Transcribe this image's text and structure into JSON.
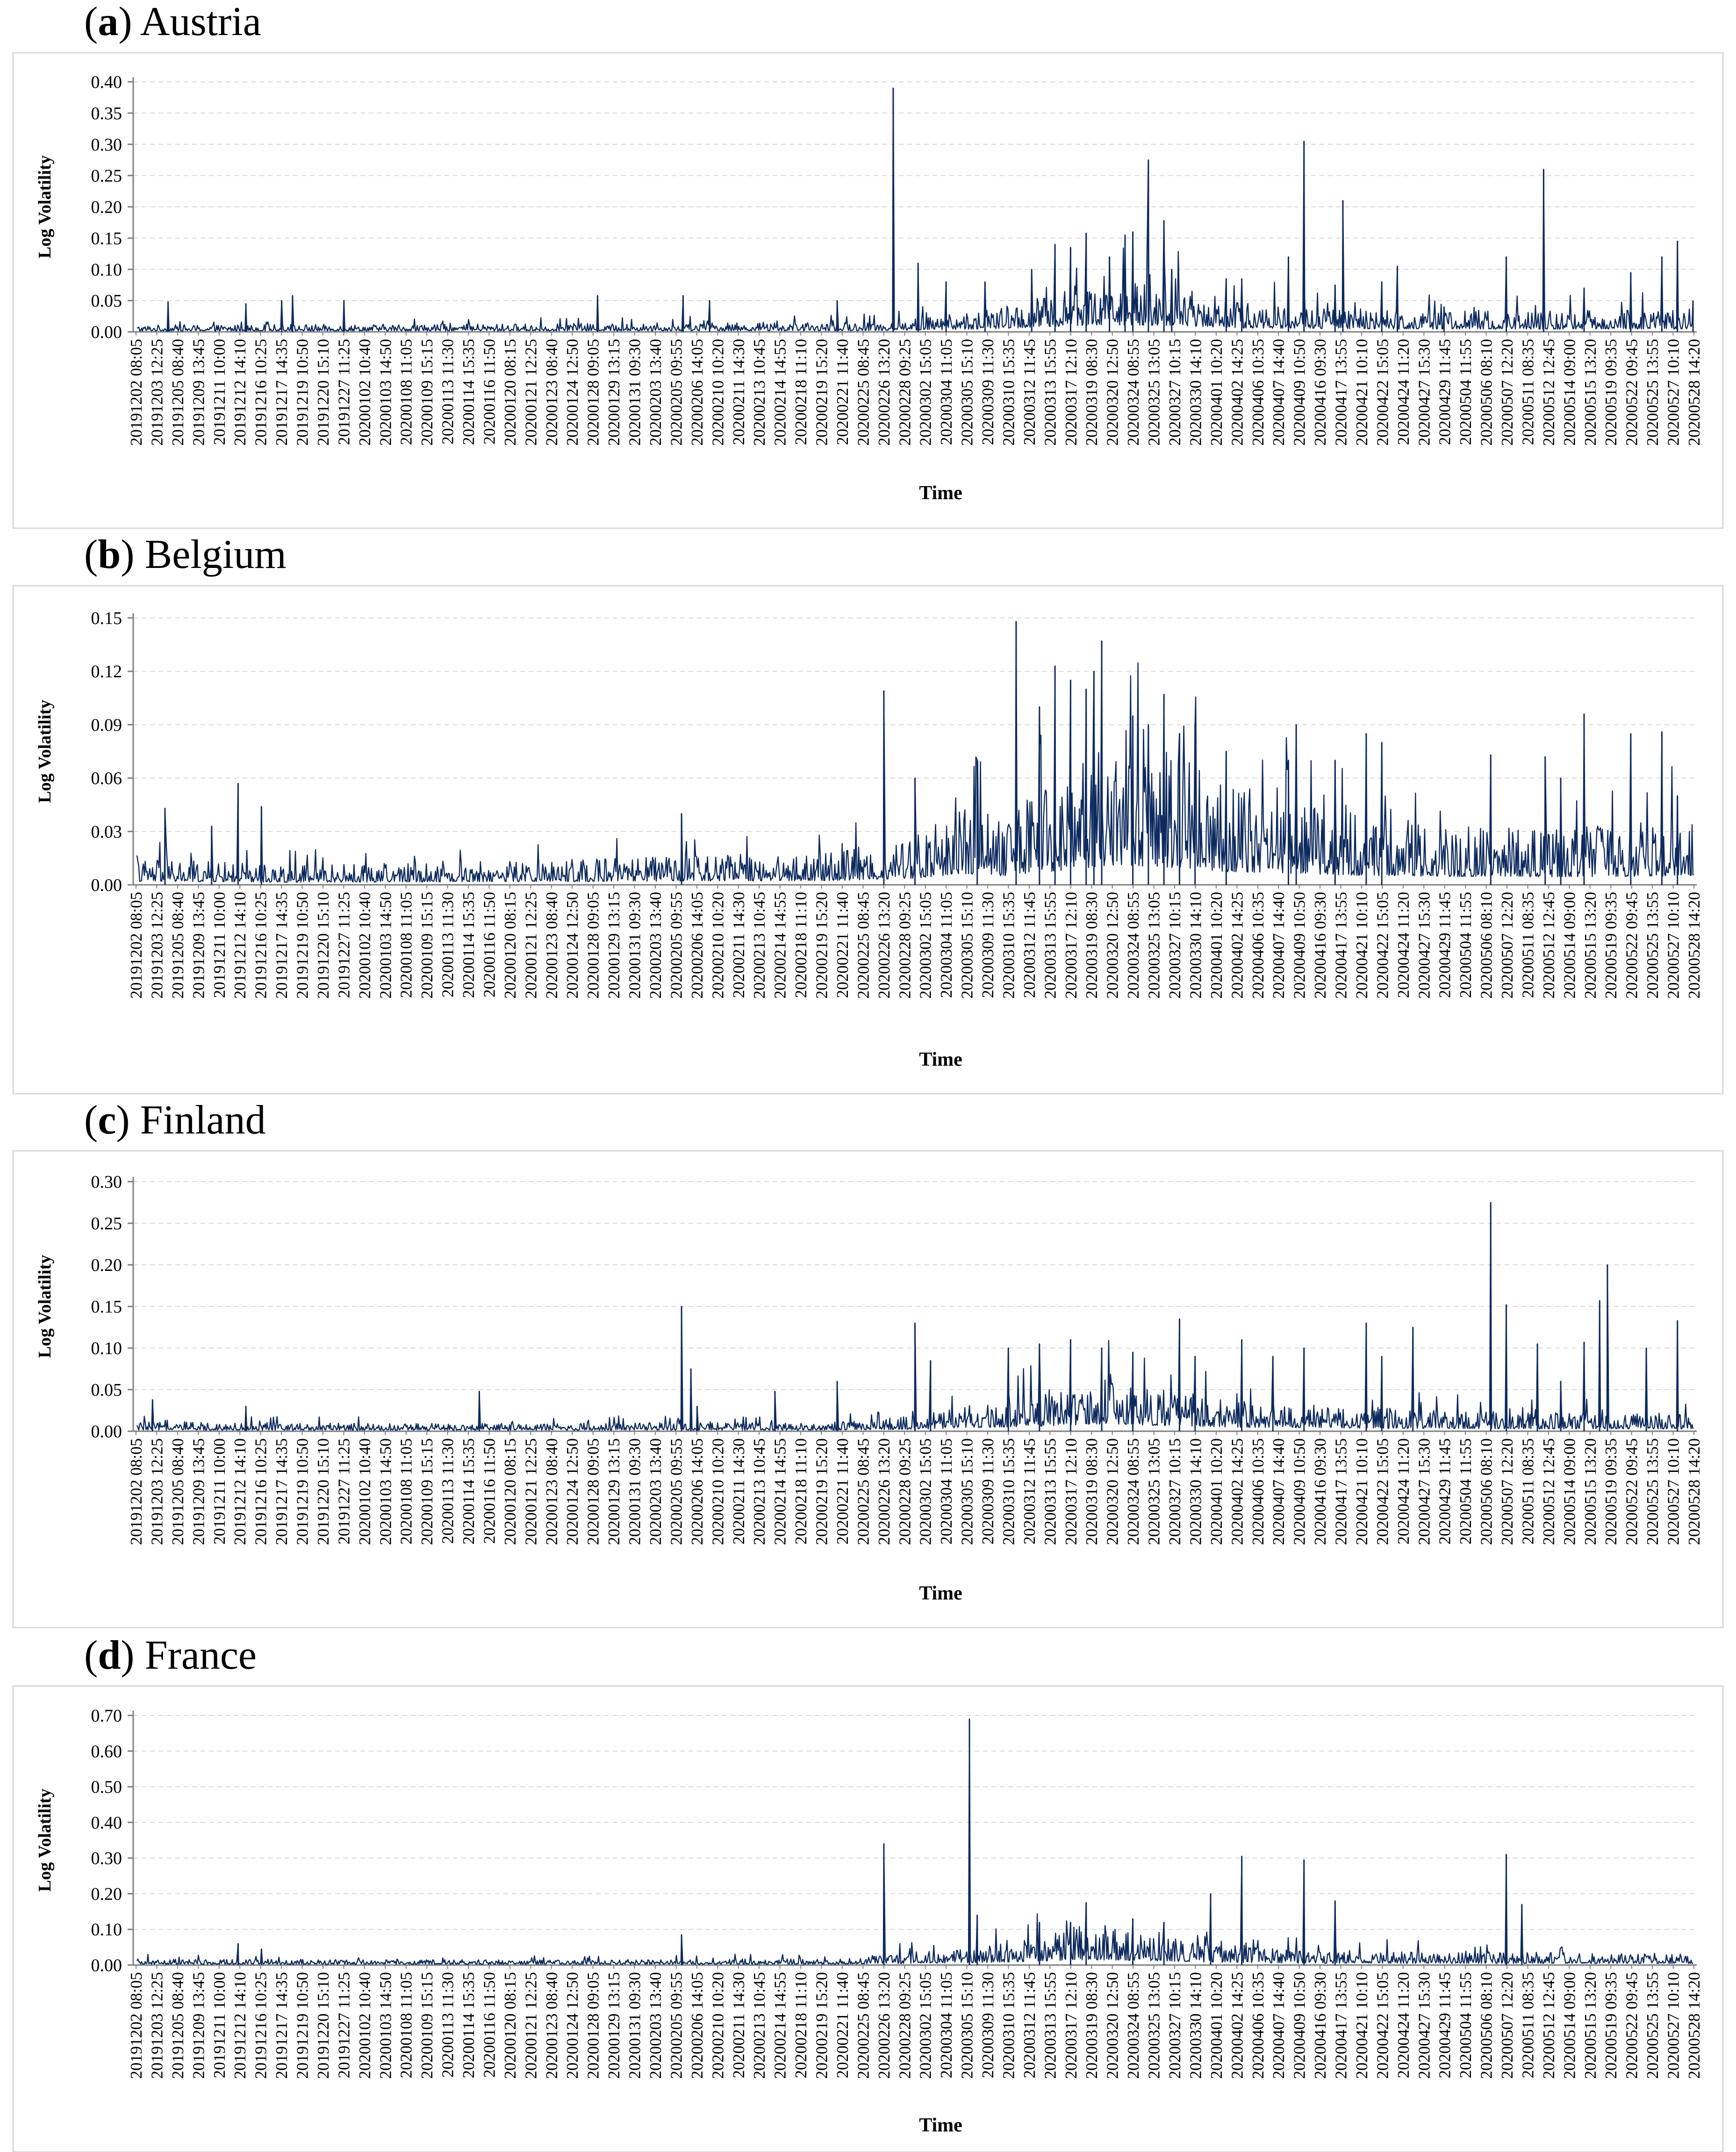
{
  "figure": {
    "panel_count": 4
  },
  "colors": {
    "series": "#0d2a5e",
    "axis": "#7f7f7f",
    "grid": "#d9d9d9",
    "frame": "#d9d9d9",
    "text": "#000000"
  },
  "chart_data": [
    {
      "type": "line",
      "panel_letter": "a",
      "country": "Austria",
      "xlabel": "Time",
      "ylabel": "Log Volatility",
      "ylim": [
        0,
        0.4
      ],
      "yticks": [
        "0.00",
        "0.05",
        "0.10",
        "0.15",
        "0.20",
        "0.25",
        "0.30",
        "0.35",
        "0.40"
      ],
      "xticks": [
        "20191202 08:05",
        "20191203 12:25",
        "20191205 08:40",
        "20191209 13:45",
        "20191211 10:00",
        "20191212 14:10",
        "20191216 10:25",
        "20191217 14:35",
        "20191219 10:50",
        "20191220 15:10",
        "20191227 11:25",
        "20200102 10:40",
        "20200103 14:50",
        "20200108 11:05",
        "20200109 15:15",
        "20200113 11:30",
        "20200114 15:35",
        "20200116 11:50",
        "20200120 08:15",
        "20200121 12:25",
        "20200123 08:40",
        "20200124 12:50",
        "20200128 09:05",
        "20200129 13:15",
        "20200131 09:30",
        "20200203 13:40",
        "20200205 09:55",
        "20200206 14:05",
        "20200210 10:20",
        "20200211 14:30",
        "20200213 10:45",
        "20200214 14:55",
        "20200218 11:10",
        "20200219 15:20",
        "20200221 11:40",
        "20200225 08:45",
        "20200226 13:20",
        "20200228 09:25",
        "20200302 15:05",
        "20200304 11:05",
        "20200305 15:10",
        "20200309 11:30",
        "20200310 15:35",
        "20200312 11:45",
        "20200313 15:55",
        "20200317 12:10",
        "20200319 08:30",
        "20200320 12:50",
        "20200324 08:55",
        "20200325 13:05",
        "20200327 10:15",
        "20200330 14:10",
        "20200401 10:20",
        "20200402 14:25",
        "20200406 10:35",
        "20200407 14:40",
        "20200409 10:50",
        "20200416 09:30",
        "20200417 13:55",
        "20200421 10:10",
        "20200422 15:05",
        "20200424 11:20",
        "20200427 15:30",
        "20200429 11:45",
        "20200504 11:55",
        "20200506 08:10",
        "20200507 12:20",
        "20200511 08:35",
        "20200512 12:45",
        "20200514 09:00",
        "20200515 13:20",
        "20200519 09:35",
        "20200522 09:45",
        "20200525 13:55",
        "20200527 10:10",
        "20200528 14:20"
      ],
      "profile": {
        "baseline": 0.006,
        "segments": [
          [
            0,
            0.006
          ],
          [
            0.46,
            0.008
          ],
          [
            0.5,
            0.012
          ],
          [
            0.55,
            0.02
          ],
          [
            0.58,
            0.03
          ],
          [
            0.6,
            0.04
          ],
          [
            0.63,
            0.045
          ],
          [
            0.67,
            0.04
          ],
          [
            0.71,
            0.025
          ],
          [
            0.78,
            0.02
          ],
          [
            0.9,
            0.018
          ],
          [
            1.0,
            0.02
          ]
        ]
      },
      "spikes": [
        [
          0.02,
          0.048
        ],
        [
          0.07,
          0.045
        ],
        [
          0.093,
          0.05
        ],
        [
          0.1,
          0.058
        ],
        [
          0.133,
          0.05
        ],
        [
          0.296,
          0.058
        ],
        [
          0.351,
          0.058
        ],
        [
          0.368,
          0.05
        ],
        [
          0.45,
          0.05
        ],
        [
          0.486,
          0.39
        ],
        [
          0.502,
          0.11
        ],
        [
          0.52,
          0.08
        ],
        [
          0.545,
          0.08
        ],
        [
          0.575,
          0.1
        ],
        [
          0.59,
          0.14
        ],
        [
          0.6,
          0.135
        ],
        [
          0.61,
          0.158
        ],
        [
          0.625,
          0.12
        ],
        [
          0.635,
          0.155
        ],
        [
          0.64,
          0.16
        ],
        [
          0.65,
          0.275
        ],
        [
          0.66,
          0.178
        ],
        [
          0.665,
          0.1
        ],
        [
          0.7,
          0.085
        ],
        [
          0.71,
          0.085
        ],
        [
          0.74,
          0.12
        ],
        [
          0.75,
          0.305
        ],
        [
          0.77,
          0.075
        ],
        [
          0.775,
          0.21
        ],
        [
          0.8,
          0.08
        ],
        [
          0.81,
          0.105
        ],
        [
          0.84,
          0.04
        ],
        [
          0.88,
          0.12
        ],
        [
          0.904,
          0.26
        ],
        [
          0.93,
          0.07
        ],
        [
          0.96,
          0.095
        ],
        [
          0.98,
          0.12
        ],
        [
          0.99,
          0.145
        ],
        [
          1.0,
          0.05
        ]
      ]
    },
    {
      "type": "line",
      "panel_letter": "b",
      "country": "Belgium",
      "xlabel": "Time",
      "ylabel": "Log Volatility",
      "ylim": [
        0,
        0.15
      ],
      "yticks": [
        "0.00",
        "0.03",
        "0.06",
        "0.09",
        "0.12",
        "0.15"
      ],
      "xticks": [
        "20191202 08:05",
        "20191203 12:25",
        "20191205 08:40",
        "20191209 13:45",
        "20191211 10:00",
        "20191212 14:10",
        "20191216 10:25",
        "20191217 14:35",
        "20191219 10:50",
        "20191220 15:10",
        "20191227 11:25",
        "20200102 10:40",
        "20200103 14:50",
        "20200108 11:05",
        "20200109 15:15",
        "20200113 11:30",
        "20200114 15:35",
        "20200116 11:50",
        "20200120 08:15",
        "20200121 12:25",
        "20200123 08:40",
        "20200124 12:50",
        "20200128 09:05",
        "20200129 13:15",
        "20200131 09:30",
        "20200203 13:40",
        "20200205 09:55",
        "20200206 14:05",
        "20200210 10:20",
        "20200211 14:30",
        "20200213 10:45",
        "20200214 14:55",
        "20200218 11:10",
        "20200219 15:20",
        "20200221 11:40",
        "20200225 08:45",
        "20200226 13:20",
        "20200228 09:25",
        "20200302 15:05",
        "20200304 11:05",
        "20200305 15:10",
        "20200309 11:30",
        "20200310 15:35",
        "20200312 11:45",
        "20200313 15:55",
        "20200317 12:10",
        "20200319 08:30",
        "20200320 12:50",
        "20200324 08:55",
        "20200325 13:05",
        "20200327 10:15",
        "20200330 14:10",
        "20200401 10:20",
        "20200402 14:25",
        "20200406 10:35",
        "20200407 14:40",
        "20200409 10:50",
        "20200416 09:30",
        "20200417 13:55",
        "20200421 10:10",
        "20200422 15:05",
        "20200424 11:20",
        "20200427 15:30",
        "20200429 11:45",
        "20200504 11:55",
        "20200506 08:10",
        "20200507 12:20",
        "20200511 08:35",
        "20200512 12:45",
        "20200514 09:00",
        "20200515 13:20",
        "20200519 09:35",
        "20200522 09:45",
        "20200525 13:55",
        "20200527 10:10",
        "20200528 14:20"
      ],
      "profile": {
        "baseline": 0.006,
        "segments": [
          [
            0,
            0.008
          ],
          [
            0.1,
            0.006
          ],
          [
            0.3,
            0.008
          ],
          [
            0.45,
            0.01
          ],
          [
            0.5,
            0.015
          ],
          [
            0.53,
            0.025
          ],
          [
            0.56,
            0.02
          ],
          [
            0.6,
            0.035
          ],
          [
            0.63,
            0.045
          ],
          [
            0.66,
            0.04
          ],
          [
            0.7,
            0.03
          ],
          [
            0.75,
            0.025
          ],
          [
            0.8,
            0.02
          ],
          [
            0.9,
            0.018
          ],
          [
            1.0,
            0.02
          ]
        ]
      },
      "spikes": [
        [
          0.018,
          0.043
        ],
        [
          0.048,
          0.033
        ],
        [
          0.065,
          0.057
        ],
        [
          0.08,
          0.044
        ],
        [
          0.35,
          0.04
        ],
        [
          0.48,
          0.109
        ],
        [
          0.5,
          0.06
        ],
        [
          0.54,
          0.07
        ],
        [
          0.565,
          0.148
        ],
        [
          0.58,
          0.1
        ],
        [
          0.59,
          0.123
        ],
        [
          0.6,
          0.115
        ],
        [
          0.61,
          0.11
        ],
        [
          0.615,
          0.12
        ],
        [
          0.62,
          0.137
        ],
        [
          0.64,
          0.095
        ],
        [
          0.65,
          0.09
        ],
        [
          0.66,
          0.107
        ],
        [
          0.67,
          0.085
        ],
        [
          0.68,
          0.09
        ],
        [
          0.7,
          0.075
        ],
        [
          0.74,
          0.07
        ],
        [
          0.745,
          0.09
        ],
        [
          0.77,
          0.07
        ],
        [
          0.79,
          0.085
        ],
        [
          0.8,
          0.08
        ],
        [
          0.87,
          0.073
        ],
        [
          0.905,
          0.072
        ],
        [
          0.915,
          0.06
        ],
        [
          0.93,
          0.096
        ],
        [
          0.96,
          0.085
        ],
        [
          0.98,
          0.086
        ],
        [
          0.99,
          0.05
        ]
      ]
    },
    {
      "type": "line",
      "panel_letter": "c",
      "country": "Finland",
      "xlabel": "Time",
      "ylabel": "Log Volatility",
      "ylim": [
        0,
        0.3
      ],
      "yticks": [
        "0.00",
        "0.05",
        "0.10",
        "0.15",
        "0.20",
        "0.25",
        "0.30"
      ],
      "xticks": [
        "20191202 08:05",
        "20191203 12:25",
        "20191205 08:40",
        "20191209 13:45",
        "20191211 10:00",
        "20191212 14:10",
        "20191216 10:25",
        "20191217 14:35",
        "20191219 10:50",
        "20191220 15:10",
        "20191227 11:25",
        "20200102 10:40",
        "20200103 14:50",
        "20200108 11:05",
        "20200109 15:15",
        "20200113 11:30",
        "20200114 15:35",
        "20200116 11:50",
        "20200120 08:15",
        "20200121 12:25",
        "20200123 08:40",
        "20200124 12:50",
        "20200128 09:05",
        "20200129 13:15",
        "20200131 09:30",
        "20200203 13:40",
        "20200205 09:55",
        "20200206 14:05",
        "20200210 10:20",
        "20200211 14:30",
        "20200213 10:45",
        "20200214 14:55",
        "20200218 11:10",
        "20200219 15:20",
        "20200221 11:40",
        "20200225 08:45",
        "20200226 13:20",
        "20200228 09:25",
        "20200302 15:05",
        "20200304 11:05",
        "20200305 15:10",
        "20200309 11:30",
        "20200310 15:35",
        "20200312 11:45",
        "20200313 15:55",
        "20200317 12:10",
        "20200319 08:30",
        "20200320 12:50",
        "20200324 08:55",
        "20200325 13:05",
        "20200327 10:15",
        "20200330 14:10",
        "20200401 10:20",
        "20200402 14:25",
        "20200406 10:35",
        "20200407 14:40",
        "20200409 10:50",
        "20200416 09:30",
        "20200417 13:55",
        "20200421 10:10",
        "20200422 15:05",
        "20200424 11:20",
        "20200427 15:30",
        "20200429 11:45",
        "20200504 11:55",
        "20200506 08:10",
        "20200507 12:20",
        "20200511 08:35",
        "20200512 12:45",
        "20200514 09:00",
        "20200515 13:20",
        "20200519 09:35",
        "20200522 09:45",
        "20200525 13:55",
        "20200527 10:10",
        "20200528 14:20"
      ],
      "profile": {
        "baseline": 0.005,
        "segments": [
          [
            0,
            0.006
          ],
          [
            0.2,
            0.005
          ],
          [
            0.45,
            0.006
          ],
          [
            0.5,
            0.01
          ],
          [
            0.55,
            0.02
          ],
          [
            0.58,
            0.025
          ],
          [
            0.62,
            0.035
          ],
          [
            0.65,
            0.03
          ],
          [
            0.7,
            0.02
          ],
          [
            0.8,
            0.015
          ],
          [
            0.9,
            0.012
          ],
          [
            1.0,
            0.012
          ]
        ]
      },
      "spikes": [
        [
          0.01,
          0.038
        ],
        [
          0.07,
          0.03
        ],
        [
          0.22,
          0.048
        ],
        [
          0.36,
          0.03
        ],
        [
          0.35,
          0.15
        ],
        [
          0.356,
          0.075
        ],
        [
          0.41,
          0.048
        ],
        [
          0.45,
          0.06
        ],
        [
          0.5,
          0.13
        ],
        [
          0.51,
          0.085
        ],
        [
          0.56,
          0.1
        ],
        [
          0.58,
          0.105
        ],
        [
          0.6,
          0.11
        ],
        [
          0.62,
          0.1
        ],
        [
          0.64,
          0.095
        ],
        [
          0.67,
          0.135
        ],
        [
          0.68,
          0.09
        ],
        [
          0.71,
          0.11
        ],
        [
          0.73,
          0.09
        ],
        [
          0.75,
          0.1
        ],
        [
          0.79,
          0.13
        ],
        [
          0.8,
          0.09
        ],
        [
          0.82,
          0.125
        ],
        [
          0.87,
          0.275
        ],
        [
          0.88,
          0.152
        ],
        [
          0.9,
          0.105
        ],
        [
          0.915,
          0.06
        ],
        [
          0.93,
          0.107
        ],
        [
          0.94,
          0.157
        ],
        [
          0.945,
          0.2
        ],
        [
          0.97,
          0.1
        ],
        [
          0.99,
          0.133
        ]
      ]
    },
    {
      "type": "line",
      "panel_letter": "d",
      "country": "France",
      "xlabel": "Time",
      "ylabel": "Log Volatility",
      "ylim": [
        0,
        0.7
      ],
      "yticks": [
        "0.00",
        "0.10",
        "0.20",
        "0.30",
        "0.40",
        "0.50",
        "0.60",
        "0.70"
      ],
      "xticks": [
        "20191202 08:05",
        "20191203 12:25",
        "20191205 08:40",
        "20191209 13:45",
        "20191211 10:00",
        "20191212 14:10",
        "20191216 10:25",
        "20191217 14:35",
        "20191219 10:50",
        "20191220 15:10",
        "20191227 11:25",
        "20200102 10:40",
        "20200103 14:50",
        "20200108 11:05",
        "20200109 15:15",
        "20200113 11:30",
        "20200114 15:35",
        "20200116 11:50",
        "20200120 08:15",
        "20200121 12:25",
        "20200123 08:40",
        "20200124 12:50",
        "20200128 09:05",
        "20200129 13:15",
        "20200131 09:30",
        "20200203 13:40",
        "20200205 09:55",
        "20200206 14:05",
        "20200210 10:20",
        "20200211 14:30",
        "20200213 10:45",
        "20200214 14:55",
        "20200218 11:10",
        "20200219 15:20",
        "20200221 11:40",
        "20200225 08:45",
        "20200226 13:20",
        "20200228 09:25",
        "20200302 15:05",
        "20200304 11:05",
        "20200305 15:10",
        "20200309 11:30",
        "20200310 15:35",
        "20200312 11:45",
        "20200313 15:55",
        "20200317 12:10",
        "20200319 08:30",
        "20200320 12:50",
        "20200324 08:55",
        "20200325 13:05",
        "20200327 10:15",
        "20200330 14:10",
        "20200401 10:20",
        "20200402 14:25",
        "20200406 10:35",
        "20200407 14:40",
        "20200409 10:50",
        "20200416 09:30",
        "20200417 13:55",
        "20200421 10:10",
        "20200422 15:05",
        "20200424 11:20",
        "20200427 15:30",
        "20200429 11:45",
        "20200504 11:55",
        "20200506 08:10",
        "20200507 12:20",
        "20200511 08:35",
        "20200512 12:45",
        "20200514 09:00",
        "20200515 13:20",
        "20200519 09:35",
        "20200522 09:45",
        "20200525 13:55",
        "20200527 10:10",
        "20200528 14:20"
      ],
      "profile": {
        "baseline": 0.008,
        "segments": [
          [
            0,
            0.009
          ],
          [
            0.3,
            0.008
          ],
          [
            0.45,
            0.01
          ],
          [
            0.5,
            0.02
          ],
          [
            0.55,
            0.03
          ],
          [
            0.58,
            0.045
          ],
          [
            0.61,
            0.06
          ],
          [
            0.65,
            0.05
          ],
          [
            0.7,
            0.03
          ],
          [
            0.75,
            0.022
          ],
          [
            0.85,
            0.02
          ],
          [
            1.0,
            0.018
          ]
        ]
      },
      "spikes": [
        [
          0.065,
          0.06
        ],
        [
          0.08,
          0.045
        ],
        [
          0.35,
          0.085
        ],
        [
          0.48,
          0.34
        ],
        [
          0.535,
          0.69
        ],
        [
          0.54,
          0.14
        ],
        [
          0.58,
          0.12
        ],
        [
          0.6,
          0.12
        ],
        [
          0.61,
          0.175
        ],
        [
          0.64,
          0.13
        ],
        [
          0.66,
          0.12
        ],
        [
          0.69,
          0.2
        ],
        [
          0.71,
          0.305
        ],
        [
          0.75,
          0.295
        ],
        [
          0.77,
          0.18
        ],
        [
          0.88,
          0.31
        ],
        [
          0.89,
          0.17
        ]
      ]
    }
  ]
}
